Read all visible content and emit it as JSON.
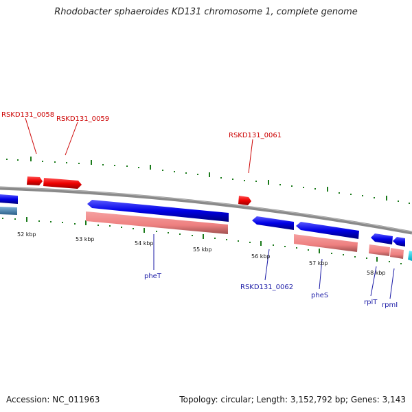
{
  "title": "Rhodobacter sphaeroides KD131 chromosome 1, complete genome",
  "footer": {
    "accession": "Accession: NC_011963",
    "summary": "Topology: circular; Length: 3,152,792 bp; Genes: 3,143"
  },
  "colors": {
    "backbone": "#8a8a8a",
    "forward_gene": "#ee1111",
    "reverse_gene": "#1010e0",
    "cds": "#f08a8a",
    "tick": "#1a7a1a",
    "red_label": "#cc0000",
    "blue_label": "#1a1aa6"
  },
  "kbp_labels": [
    "52 kbp",
    "53 kbp",
    "54 kbp",
    "55 kbp",
    "56 kbp",
    "57 kbp",
    "58 kbp"
  ],
  "gene_labels_forward": [
    "RSKD131_0058",
    "RSKD131_0059",
    "RSKD131_0061"
  ],
  "gene_labels_reverse": [
    "pheT",
    "RSKD131_0062",
    "pheS",
    "rplT",
    "rpmI"
  ]
}
